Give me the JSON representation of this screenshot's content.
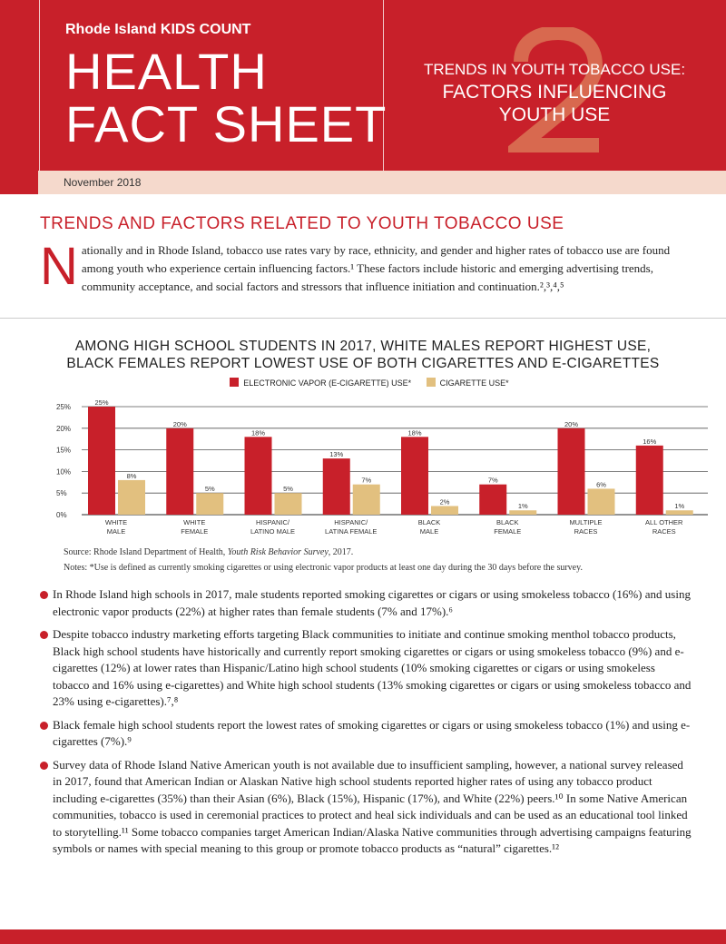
{
  "header": {
    "org": "Rhode Island KIDS COUNT",
    "title_line1": "HEALTH",
    "title_line2": "FACT SHEET",
    "issue_number": "2",
    "subtitle_line1": "TRENDS IN YOUTH TOBACCO USE:",
    "subtitle_line2": "FACTORS INFLUENCING",
    "subtitle_line3": "YOUTH USE",
    "date": "November 2018"
  },
  "colors": {
    "brand_red": "#c8202a",
    "tan": "#e2c07f",
    "band": "#f5d9cc"
  },
  "section": {
    "heading": "TRENDS AND FACTORS RELATED TO YOUTH TOBACCO USE",
    "drop_cap": "N",
    "intro": "ationally and in Rhode Island, tobacco use rates vary by race, ethnicity, and gender and higher rates of tobacco use are found among youth who experience certain influencing factors.¹ These factors include historic and emerging advertising trends, community acceptance, and social factors and stressors that influence initiation and continuation.²,³,⁴,⁵"
  },
  "chart_data": {
    "type": "bar",
    "title_line1": "AMONG HIGH SCHOOL STUDENTS IN 2017, WHITE MALES REPORT HIGHEST USE,",
    "title_line2": "BLACK FEMALES REPORT LOWEST USE OF BOTH CIGARETTES  AND E-CIGARETTES",
    "categories": [
      [
        "WHITE",
        "MALE"
      ],
      [
        "WHITE",
        "FEMALE"
      ],
      [
        "HISPANIC/",
        "LATINO MALE"
      ],
      [
        "HISPANIC/",
        "LATINA FEMALE"
      ],
      [
        "BLACK",
        "MALE"
      ],
      [
        "BLACK",
        "FEMALE"
      ],
      [
        "MULTIPLE",
        "RACES"
      ],
      [
        "ALL OTHER",
        "RACES"
      ]
    ],
    "series": [
      {
        "name": "ELECTRONIC VAPOR (E-CIGARETTE) USE*",
        "color": "#c8202a",
        "values": [
          25,
          20,
          18,
          13,
          18,
          7,
          20,
          16
        ]
      },
      {
        "name": "CIGARETTE USE*",
        "color": "#e2c07f",
        "values": [
          8,
          5,
          5,
          7,
          2,
          1,
          6,
          1
        ]
      }
    ],
    "yticks": [
      "0%",
      "5%",
      "10%",
      "15%",
      "20%",
      "25%"
    ],
    "ylim": [
      0,
      25
    ],
    "grid": true,
    "legend": "top-center",
    "source_prefix": "Source: Rhode Island Department of Health, ",
    "source_title": "Youth Risk Behavior Survey",
    "source_suffix": ", 2017.",
    "notes": "Notes: *Use is defined as currently smoking cigarettes or using electronic vapor products at least one day during the 30 days before the survey."
  },
  "bullets": [
    "In Rhode Island high schools in 2017, male students reported smoking cigarettes or cigars or using smokeless tobacco (16%) and using electronic vapor products (22%) at higher rates than female students (7% and 17%).⁶",
    "Despite tobacco industry marketing efforts targeting Black communities to initiate and continue smoking menthol tobacco products, Black high school students have historically and currently report smoking cigarettes or cigars or using smokeless tobacco (9%) and e-cigarettes (12%) at lower rates than Hispanic/Latino high school students (10% smoking cigarettes or cigars or using smokeless tobacco and 16% using e-cigarettes) and White high school students (13% smoking cigarettes or cigars or using smokeless tobacco and 23% using e-cigarettes).⁷,⁸",
    "Black female high school students report the lowest rates of smoking cigarettes or cigars or using smokeless tobacco (1%) and using e-cigarettes (7%).⁹",
    "Survey data of Rhode Island Native American youth is not available due to insufficient sampling, however, a national survey released in 2017, found that American Indian or Alaskan Native high school students reported higher rates of using any tobacco product including e-cigarettes (35%) than their Asian (6%), Black (15%), Hispanic (17%), and White (22%) peers.¹⁰ In some Native American communities, tobacco is used in ceremonial practices to protect and heal sick individuals and can be used as an educational tool linked to storytelling.¹¹ Some tobacco companies target American Indian/Alaska Native communities through advertising campaigns featuring symbols or names with special meaning to this group or promote tobacco products as “natural” cigarettes.¹²"
  ]
}
